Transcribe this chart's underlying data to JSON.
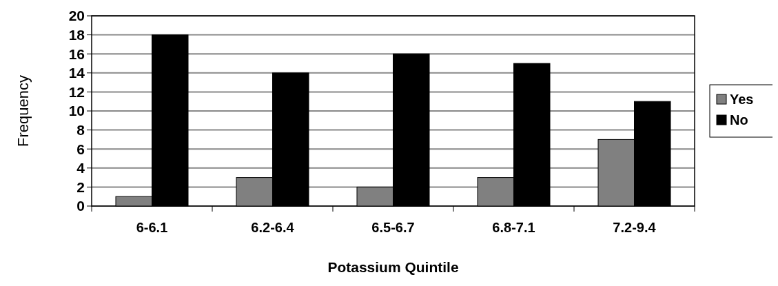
{
  "chart_data": {
    "type": "bar",
    "xlabel": "Potassium Quintile",
    "ylabel": "Frequency",
    "categories": [
      "6-6.1",
      "6.2-6.4",
      "6.5-6.7",
      "6.8-7.1",
      "7.2-9.4"
    ],
    "series": [
      {
        "name": "Yes",
        "color": "#808080",
        "values": [
          1,
          3,
          2,
          3,
          7
        ]
      },
      {
        "name": "No",
        "color": "#000000",
        "values": [
          18,
          14,
          16,
          15,
          11
        ]
      }
    ],
    "ylim": [
      0,
      20
    ],
    "yticks": [
      0,
      2,
      4,
      6,
      8,
      10,
      12,
      14,
      16,
      18,
      20
    ],
    "grid": "y",
    "legend": "right"
  }
}
